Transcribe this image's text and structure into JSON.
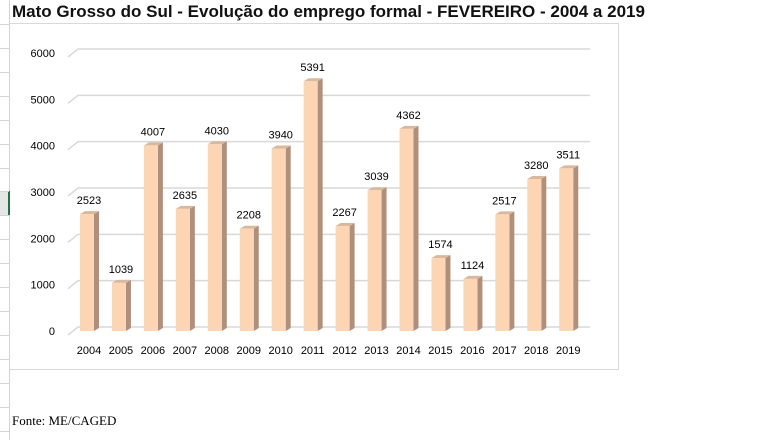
{
  "title": "Mato Grosso do Sul - Evolução do emprego formal - FEVEREIRO - 2004 a 2019",
  "source": "Fonte: ME/CAGED",
  "chart_data": {
    "type": "bar",
    "title": "Mato Grosso do Sul - Evolução do emprego formal - FEVEREIRO - 2004 a 2019",
    "categories": [
      "2004",
      "2005",
      "2006",
      "2007",
      "2008",
      "2009",
      "2010",
      "2011",
      "2012",
      "2013",
      "2014",
      "2015",
      "2016",
      "2017",
      "2018",
      "2019"
    ],
    "values": [
      2523,
      1039,
      4007,
      2635,
      4030,
      2208,
      3940,
      5391,
      2267,
      3039,
      4362,
      1574,
      1124,
      2517,
      3280,
      3511
    ],
    "ylim": [
      0,
      6000
    ],
    "yticks": [
      0,
      1000,
      2000,
      3000,
      4000,
      5000,
      6000
    ],
    "xlabel": "",
    "ylabel": "",
    "grid": true,
    "legend": "none",
    "colors": {
      "front": "#fcd5b4",
      "side": "#b0907a",
      "top": "#d9b89c",
      "grid": "#d9d9d9"
    }
  }
}
